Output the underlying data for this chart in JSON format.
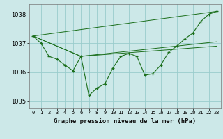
{
  "background_color": "#cce8e8",
  "grid_color": "#99cccc",
  "line_color": "#1a6e1a",
  "marker_color": "#1a6e1a",
  "title": "Graphe pression niveau de la mer (hPa)",
  "title_fontsize": 6.5,
  "xlim": [
    -0.5,
    23.5
  ],
  "ylim": [
    1034.75,
    1038.35
  ],
  "yticks": [
    1035,
    1036,
    1037,
    1038
  ],
  "ytick_fontsize": 6,
  "xtick_fontsize": 5,
  "xticks": [
    0,
    1,
    2,
    3,
    4,
    5,
    6,
    7,
    8,
    9,
    10,
    11,
    12,
    13,
    14,
    15,
    16,
    17,
    18,
    19,
    20,
    21,
    22,
    23
  ],
  "series1": {
    "x": [
      0,
      1,
      2,
      3,
      4,
      5,
      6,
      7,
      8,
      9,
      10,
      11,
      12,
      13,
      14,
      15,
      16,
      17,
      18,
      19,
      20,
      21,
      22,
      23
    ],
    "y": [
      1037.25,
      1037.0,
      1036.55,
      1036.45,
      1036.25,
      1036.05,
      1036.55,
      1035.2,
      1035.45,
      1035.6,
      1036.15,
      1036.55,
      1036.65,
      1036.55,
      1035.9,
      1035.95,
      1036.25,
      1036.7,
      1036.9,
      1037.15,
      1037.35,
      1037.75,
      1038.0,
      1038.1
    ]
  },
  "line2": {
    "x": [
      0,
      23
    ],
    "y": [
      1037.25,
      1038.1
    ]
  },
  "line3": {
    "x": [
      0,
      6,
      23
    ],
    "y": [
      1037.25,
      1036.55,
      1037.05
    ]
  },
  "line4": {
    "x": [
      0,
      6,
      23
    ],
    "y": [
      1037.25,
      1036.55,
      1036.9
    ]
  }
}
